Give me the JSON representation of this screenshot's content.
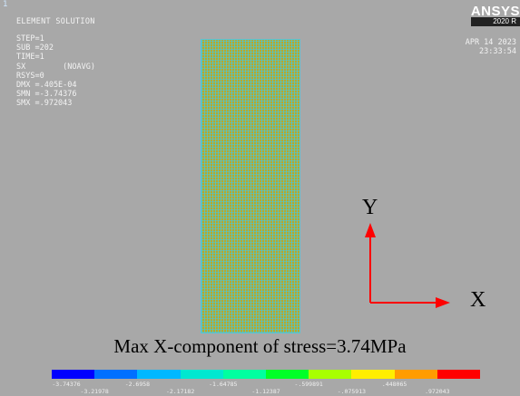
{
  "header": {
    "corner_mark": "1",
    "title": "ELEMENT SOLUTION",
    "info_lines": [
      "STEP=1",
      "SUB =202",
      "TIME=1",
      "SX        (NOAVG)",
      "RSYS=0",
      "DMX =.405E-04",
      "SMN =-3.74376",
      "SMX =.972043"
    ],
    "logo_name": "ANSYS",
    "logo_version": "2020 R",
    "date": "APR 14 2023",
    "time": "23:33:54"
  },
  "axes": {
    "y_label": "Y",
    "x_label": "X",
    "arrow_color": "#ff0000"
  },
  "caption": "Max X-component of stress=3.74MPa",
  "legend": {
    "colors": [
      "#0000ff",
      "#0070ff",
      "#00b8ff",
      "#00e8d0",
      "#00ffa0",
      "#00ff28",
      "#a8ff00",
      "#ffee00",
      "#ff9c00",
      "#ff0000"
    ],
    "ticks_top": [
      "-3.74376",
      "-2.6958",
      "-1.64785",
      "-.599891",
      ".448065"
    ],
    "ticks_bottom": [
      "-3.21978",
      "-2.17182",
      "-1.12387",
      "-.075913",
      ".972043"
    ]
  }
}
